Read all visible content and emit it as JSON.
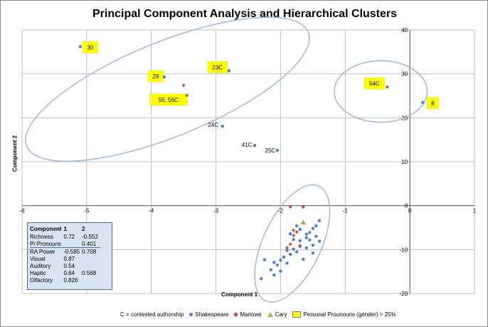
{
  "chart_data": {
    "type": "scatter",
    "title": "Principal Component Analysis and Hierarchical  Clusters",
    "xlabel": "Component 1",
    "ylabel": "Component 2",
    "xlim": [
      -6,
      1
    ],
    "ylim": [
      -20,
      40
    ],
    "x_ticks": [
      "-6",
      "-5",
      "-4",
      "-3",
      "-2",
      "-1",
      "0",
      "1"
    ],
    "y_ticks": [
      "-20",
      "-10",
      "0",
      "10",
      "20",
      "30",
      "40"
    ],
    "grid": true,
    "note": "C = contested authorship",
    "legend": [
      "Shakespeare",
      "Marlowe",
      "Cary",
      "Personal Prounouns (gender)  > 25%"
    ],
    "colors": {
      "shakespeare": "#4f81bd",
      "marlowe": "#c0504d",
      "cary": "#9bbb59",
      "highlight": "#ffff00",
      "ellipse": "#a6b9d9"
    },
    "series": [
      {
        "name": "Shakespeare",
        "points": [
          [
            -5.1,
            36.2
          ],
          [
            -3.8,
            29.3
          ],
          [
            -2.8,
            30.7
          ],
          [
            -2.9,
            18.1
          ],
          [
            -2.4,
            13.7
          ],
          [
            -2.05,
            12.6
          ],
          [
            0.2,
            23.5
          ],
          [
            -1.65,
            -0.3
          ],
          [
            -1.4,
            -3.4
          ],
          [
            -1.45,
            -4.6
          ],
          [
            -1.5,
            -5.2
          ],
          [
            -1.55,
            -6.1
          ],
          [
            -1.6,
            -6.5
          ],
          [
            -1.75,
            -4.6
          ],
          [
            -1.7,
            -5.4
          ],
          [
            -1.85,
            -6.4
          ],
          [
            -1.6,
            -7.3
          ],
          [
            -1.8,
            -7.7
          ],
          [
            -1.7,
            -8.0
          ],
          [
            -1.55,
            -7.8
          ],
          [
            -1.45,
            -7.0
          ],
          [
            -1.4,
            -8.1
          ],
          [
            -1.5,
            -9.0
          ],
          [
            -1.6,
            -9.6
          ],
          [
            -1.7,
            -9.1
          ],
          [
            -1.8,
            -9.9
          ],
          [
            -1.75,
            -10.5
          ],
          [
            -1.85,
            -11.1
          ],
          [
            -1.9,
            -10.2
          ],
          [
            -1.95,
            -11.7
          ],
          [
            -2.0,
            -12.4
          ],
          [
            -1.9,
            -13.1
          ],
          [
            -2.05,
            -13.5
          ],
          [
            -2.1,
            -12.9
          ],
          [
            -2.15,
            -14.6
          ],
          [
            -2.0,
            -14.9
          ],
          [
            -2.1,
            -15.8
          ],
          [
            -2.25,
            -12.3
          ],
          [
            -2.3,
            -16.6
          ],
          [
            -1.65,
            -12.2
          ],
          [
            -1.5,
            -10.8
          ]
        ]
      },
      {
        "name": "Marlowe",
        "points": [
          [
            -3.5,
            27.4
          ],
          [
            -3.45,
            25.1
          ],
          [
            -0.35,
            27.0
          ],
          [
            -1.85,
            -0.3
          ],
          [
            -1.65,
            -0.2
          ],
          [
            -1.8,
            -6.8
          ],
          [
            -1.85,
            -8.8
          ],
          [
            -1.75,
            -6.0
          ],
          [
            -1.7,
            -9.3
          ],
          [
            -1.9,
            -9.6
          ],
          [
            -1.8,
            -5.6
          ]
        ]
      },
      {
        "name": "Cary",
        "points": [
          [
            -1.65,
            -3.8
          ]
        ]
      }
    ],
    "annotations": [
      {
        "text": "30",
        "x": -5.1,
        "y": 36.2,
        "highlight": true
      },
      {
        "text": "29",
        "x": -3.8,
        "y": 29.3,
        "highlight": true
      },
      {
        "text": "23C",
        "x": -2.8,
        "y": 30.7,
        "highlight": true
      },
      {
        "text": "55, 56C",
        "x": -3.45,
        "y": 25.1,
        "highlight": true
      },
      {
        "text": "54C",
        "x": -0.35,
        "y": 27.0,
        "highlight": true
      },
      {
        "text": "8",
        "x": 0.2,
        "y": 23.5,
        "highlight": true
      },
      {
        "text": "24C",
        "x": -2.9,
        "y": 18.1,
        "highlight": false
      },
      {
        "text": "41C",
        "x": -2.4,
        "y": 13.7,
        "highlight": false
      },
      {
        "text": "25C",
        "x": -2.05,
        "y": 12.6,
        "highlight": false
      }
    ],
    "clusters": [
      {
        "cx": -3.75,
        "cy": 26.5,
        "rx": 2.35,
        "ry": 10.8,
        "rotation": -22
      },
      {
        "cx": -0.45,
        "cy": 26.0,
        "rx": 0.72,
        "ry": 7.0,
        "rotation": 0
      },
      {
        "cx": -1.82,
        "cy": -8.6,
        "rx": 0.45,
        "ry": 14.4,
        "rotation": 25
      }
    ]
  },
  "loadings_table": {
    "headers": [
      "Component",
      "1",
      "2"
    ],
    "rows": [
      [
        "Richness",
        "0.72",
        "-0.552"
      ],
      [
        "P/ Pronouns",
        "",
        "0.401"
      ],
      [
        "RA Power",
        "-0.585",
        "0.708"
      ],
      [
        "Visual",
        "0.87",
        ""
      ],
      [
        "Auditory",
        "0.54",
        ""
      ],
      [
        "Haptic",
        "0.64",
        "0.568"
      ],
      [
        "Olfactory",
        "0.826",
        ""
      ]
    ]
  }
}
